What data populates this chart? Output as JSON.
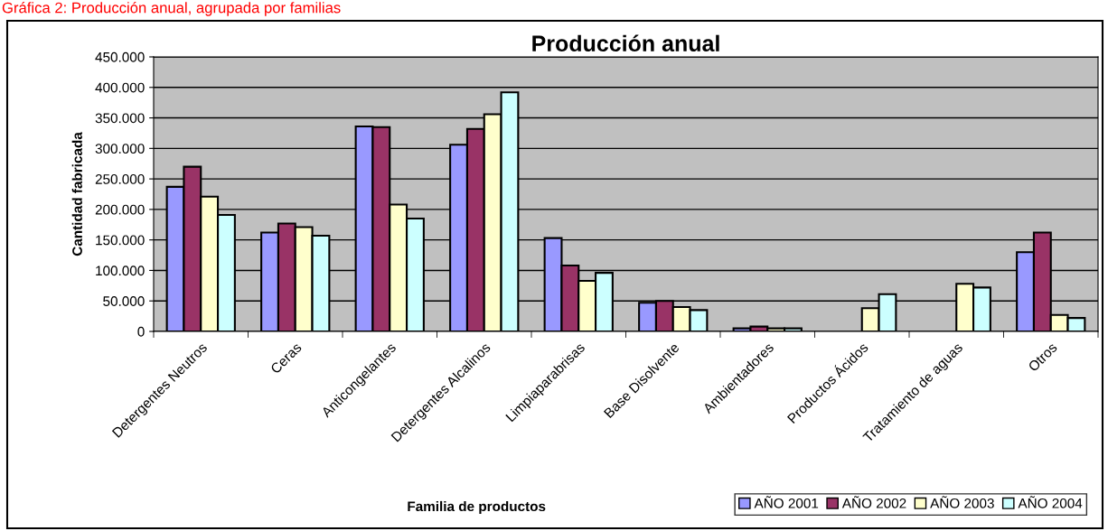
{
  "chart_data": {
    "type": "bar",
    "title": "Producción anual",
    "xlabel": "Familia de productos",
    "ylabel": "Cantidad fabricada",
    "annotations": [
      "Gráfica 2: Producción anual, agrupada por familias"
    ],
    "categories": [
      "Detergentes Neutros",
      "Ceras",
      "Anticongelantes",
      "Detergentes Alcalinos",
      "Limpiaparabrisas",
      "Base Disolvente",
      "Ambientadores",
      "Productos Ácidos",
      "Tratamiento de aguas",
      "Otros"
    ],
    "series": [
      {
        "name": "AÑO 2001",
        "color": "#9999ff",
        "values": [
          237000,
          162000,
          336000,
          306000,
          153000,
          47000,
          5000,
          null,
          null,
          130000
        ]
      },
      {
        "name": "AÑO 2002",
        "color": "#993366",
        "values": [
          270000,
          177000,
          335000,
          332000,
          108000,
          50000,
          8000,
          null,
          null,
          162000
        ]
      },
      {
        "name": "AÑO 2003",
        "color": "#ffffcc",
        "values": [
          221000,
          171000,
          208000,
          356000,
          83000,
          40000,
          5000,
          38000,
          78000,
          27000
        ]
      },
      {
        "name": "AÑO 2004",
        "color": "#ccffff",
        "values": [
          191000,
          157000,
          185000,
          392000,
          96000,
          35000,
          5000,
          61000,
          72000,
          22000
        ]
      }
    ],
    "ylim": [
      0,
      450000
    ],
    "yticks": [
      0,
      {
        "value": 50000,
        "label": "50.000"
      },
      {
        "value": 100000,
        "label": "100.000"
      },
      {
        "value": 150000,
        "label": "150.000"
      },
      {
        "value": 200000,
        "label": "200.000"
      },
      {
        "value": 250000,
        "label": "250.000"
      },
      {
        "value": 300000,
        "label": "300.000"
      },
      {
        "value": 350000,
        "label": "350.000"
      },
      {
        "value": 400000,
        "label": "400.000"
      },
      {
        "value": 450000,
        "label": "450.000"
      }
    ],
    "grid": "y",
    "legend": "bottom right"
  }
}
